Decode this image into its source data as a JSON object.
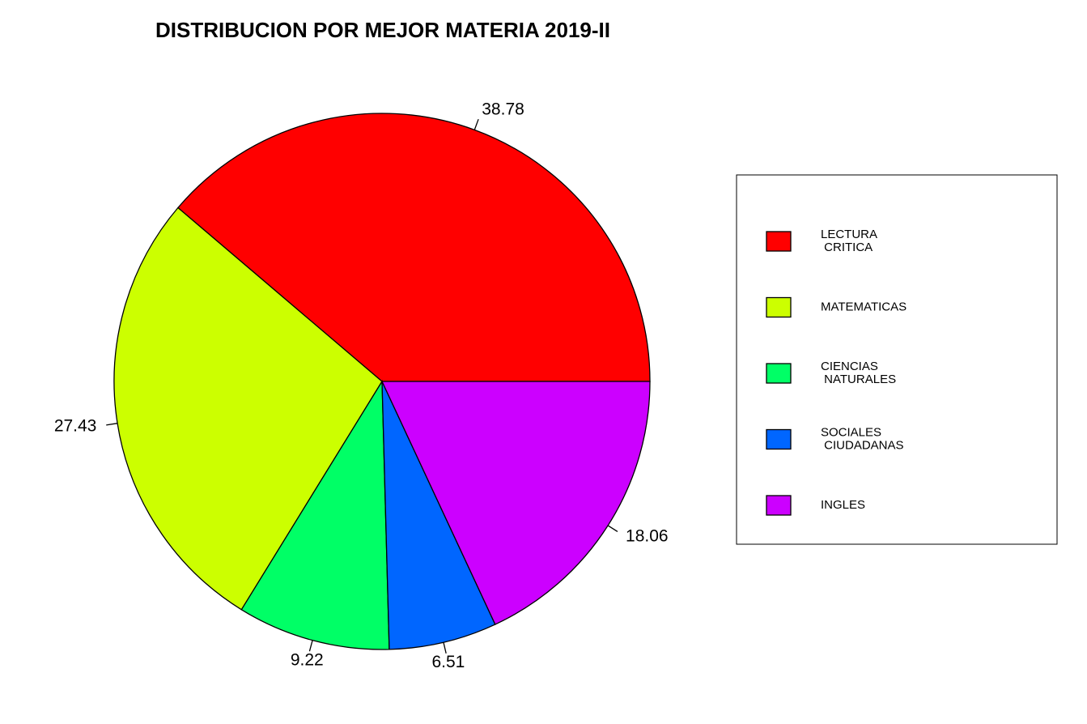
{
  "chart_data": {
    "type": "pie",
    "title": "DISTRIBUCION POR MEJOR MATERIA 2019-II",
    "slices": [
      {
        "label": "38.78",
        "value": 38.78,
        "color": "#FF0000",
        "legend_lines": [
          "LECTURA",
          " CRITICA"
        ]
      },
      {
        "label": "27.43",
        "value": 27.43,
        "color": "#CCFF00",
        "legend_lines": [
          "MATEMATICAS"
        ]
      },
      {
        "label": "9.22",
        "value": 9.22,
        "color": "#00FF66",
        "legend_lines": [
          "CIENCIAS",
          " NATURALES"
        ]
      },
      {
        "label": "6.51",
        "value": 6.51,
        "color": "#0066FF",
        "legend_lines": [
          "SOCIALES",
          " CIUDADANAS"
        ]
      },
      {
        "label": "18.06",
        "value": 18.06,
        "color": "#CC00FF",
        "legend_lines": [
          "INGLES"
        ]
      }
    ],
    "start_angle_deg": 0,
    "direction": "counterclockwise",
    "legend_position": "right"
  }
}
